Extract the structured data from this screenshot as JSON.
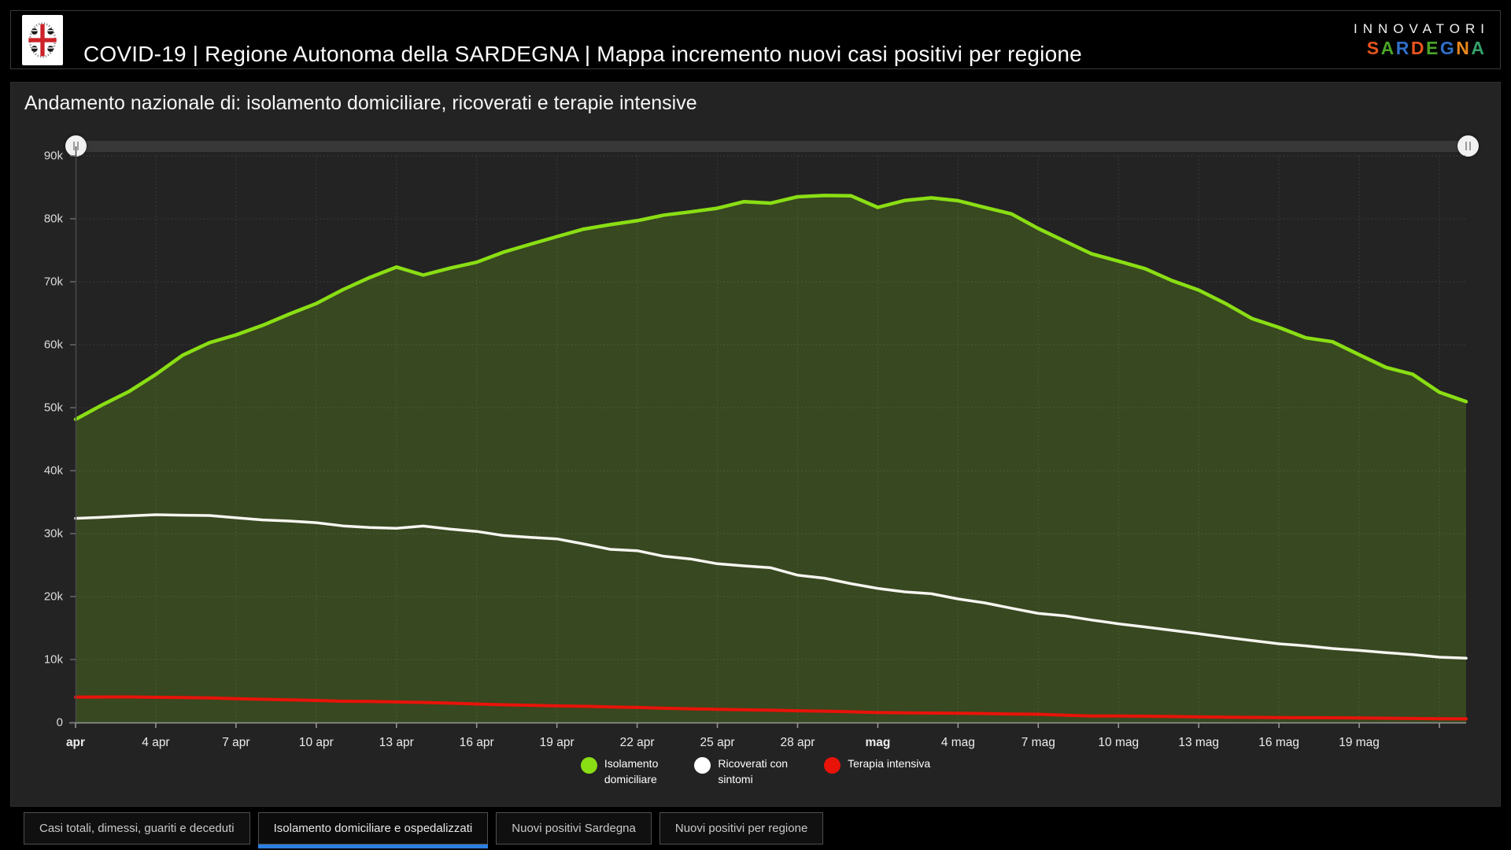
{
  "colors": {
    "accent_blue": "#2a7fe0",
    "panel_bg": "#232323",
    "page_bg": "#000000",
    "green_series": "#8ade14",
    "white_series": "#f5f5f0",
    "red_series": "#e81309"
  },
  "header": {
    "title": "COVID-19 | Regione Autonoma della SARDEGNA | Mappa incremento nuovi casi positivi per regione",
    "logo_name": "stemma-regione-sardegna",
    "brand": {
      "line1": "INNOVATORI",
      "line2_letters": [
        {
          "ch": "S",
          "color": "#e8541d"
        },
        {
          "ch": "A",
          "color": "#4aa528"
        },
        {
          "ch": "R",
          "color": "#2f6fc9"
        },
        {
          "ch": "D",
          "color": "#e8541d"
        },
        {
          "ch": "E",
          "color": "#4aa528"
        },
        {
          "ch": "G",
          "color": "#2f6fc9"
        },
        {
          "ch": "N",
          "color": "#e8871d"
        },
        {
          "ch": "A",
          "color": "#35a06a"
        }
      ]
    }
  },
  "chart_data": {
    "type": "area",
    "title": "Andamento nazionale di: isolamento domiciliare, ricoverati e terapie intensive",
    "x": [
      "1 apr",
      "2 apr",
      "3 apr",
      "4 apr",
      "5 apr",
      "6 apr",
      "7 apr",
      "8 apr",
      "9 apr",
      "10 apr",
      "11 apr",
      "12 apr",
      "13 apr",
      "14 apr",
      "15 apr",
      "16 apr",
      "17 apr",
      "18 apr",
      "19 apr",
      "20 apr",
      "21 apr",
      "22 apr",
      "23 apr",
      "24 apr",
      "25 apr",
      "26 apr",
      "27 apr",
      "28 apr",
      "29 apr",
      "30 apr",
      "1 mag",
      "2 mag",
      "3 mag",
      "4 mag",
      "5 mag",
      "6 mag",
      "7 mag",
      "8 mag",
      "9 mag",
      "10 mag",
      "11 mag",
      "12 mag",
      "13 mag",
      "14 mag",
      "15 mag",
      "16 mag",
      "17 mag",
      "18 mag",
      "19 mag",
      "20 mag",
      "21 mag",
      "22 mag",
      "23 mag"
    ],
    "x_ticks": [
      {
        "label": "apr",
        "day": 0,
        "bold": true
      },
      {
        "label": "4 apr",
        "day": 3,
        "bold": false
      },
      {
        "label": "7 apr",
        "day": 6,
        "bold": false
      },
      {
        "label": "10 apr",
        "day": 9,
        "bold": false
      },
      {
        "label": "13 apr",
        "day": 12,
        "bold": false
      },
      {
        "label": "16 apr",
        "day": 15,
        "bold": false
      },
      {
        "label": "19 apr",
        "day": 18,
        "bold": false
      },
      {
        "label": "22 apr",
        "day": 21,
        "bold": false
      },
      {
        "label": "25 apr",
        "day": 24,
        "bold": false
      },
      {
        "label": "28 apr",
        "day": 27,
        "bold": false
      },
      {
        "label": "mag",
        "day": 30,
        "bold": true
      },
      {
        "label": "4 mag",
        "day": 33,
        "bold": false
      },
      {
        "label": "7 mag",
        "day": 36,
        "bold": false
      },
      {
        "label": "10 mag",
        "day": 39,
        "bold": false
      },
      {
        "label": "13 mag",
        "day": 42,
        "bold": false
      },
      {
        "label": "16 mag",
        "day": 45,
        "bold": false
      },
      {
        "label": "19 mag",
        "day": 48,
        "bold": false
      }
    ],
    "y_ticks": [
      {
        "label": "0",
        "value": 0
      },
      {
        "label": "10k",
        "value": 10000
      },
      {
        "label": "20k",
        "value": 20000
      },
      {
        "label": "30k",
        "value": 30000
      },
      {
        "label": "40k",
        "value": 40000
      },
      {
        "label": "50k",
        "value": 50000
      },
      {
        "label": "60k",
        "value": 60000
      },
      {
        "label": "70k",
        "value": 70000
      },
      {
        "label": "80k",
        "value": 80000
      },
      {
        "label": "90k",
        "value": 90000
      }
    ],
    "ylim": [
      0,
      90000
    ],
    "grid": true,
    "legend_position": "bottom",
    "area_fill": "rgba(138,222,20,0.20)",
    "series": [
      {
        "name": "Isolamento domiciliare",
        "color": "#8ade14",
        "width": 4.5,
        "values": [
          48134,
          50456,
          52579,
          55270,
          58320,
          60313,
          61557,
          63084,
          64877,
          66534,
          68744,
          70680,
          72333,
          71063,
          72157,
          73094,
          74696,
          75945,
          77176,
          78364,
          79076,
          79702,
          80589,
          81104,
          81678,
          82722,
          82488,
          83504,
          83696,
          83652,
          81808,
          82904,
          83324,
          82879,
          81796,
          80770,
          78457,
          76440,
          74426,
          73276,
          72070,
          70187,
          68679,
          66553,
          64132,
          62752,
          61099,
          60470,
          58417,
          56398,
          55311,
          52452,
          50966
        ]
      },
      {
        "name": "Ricoverati con sintomi",
        "color": "#f5f5f0",
        "width": 3.5,
        "values": [
          32426,
          32593,
          32809,
          33004,
          32926,
          32874,
          32510,
          32178,
          32004,
          31739,
          31228,
          30961,
          30847,
          31197,
          30722,
          30345,
          29705,
          29409,
          29157,
          28359,
          27504,
          27290,
          26401,
          25978,
          25214,
          24880,
          24570,
          23396,
          22925,
          22047,
          21301,
          20749,
          20444,
          19628,
          18996,
          18156,
          17331,
          16937,
          16270,
          15674,
          15174,
          14636,
          14098,
          13539,
          13014,
          12504,
          12172,
          11756,
          11453,
          11100,
          10790,
          10380,
          10207
        ]
      },
      {
        "name": "Terapia intensiva",
        "color": "#e81309",
        "width": 4,
        "values": [
          4023,
          4053,
          4068,
          3994,
          3977,
          3898,
          3792,
          3693,
          3605,
          3497,
          3381,
          3343,
          3260,
          3186,
          3079,
          2936,
          2812,
          2733,
          2635,
          2573,
          2471,
          2384,
          2267,
          2173,
          2102,
          2009,
          1956,
          1863,
          1795,
          1694,
          1578,
          1539,
          1501,
          1479,
          1427,
          1333,
          1311,
          1168,
          1034,
          1027,
          999,
          952,
          893,
          855,
          808,
          775,
          762,
          749,
          716,
          676,
          640,
          595,
          572
        ]
      }
    ]
  },
  "legend": {
    "items": [
      {
        "label": "Isolamento\ndomiciliare",
        "color": "#8ade14"
      },
      {
        "label": "Ricoverati con\nsintomi",
        "color": "#ffffff"
      },
      {
        "label": "Terapia intensiva",
        "color": "#e81309"
      }
    ]
  },
  "tabs": [
    {
      "label": "Casi totali, dimessi, guariti e deceduti",
      "active": false
    },
    {
      "label": "Isolamento domiciliare e ospedalizzati",
      "active": true
    },
    {
      "label": "Nuovi positivi Sardegna",
      "active": false
    },
    {
      "label": "Nuovi positivi per regione",
      "active": false
    }
  ]
}
